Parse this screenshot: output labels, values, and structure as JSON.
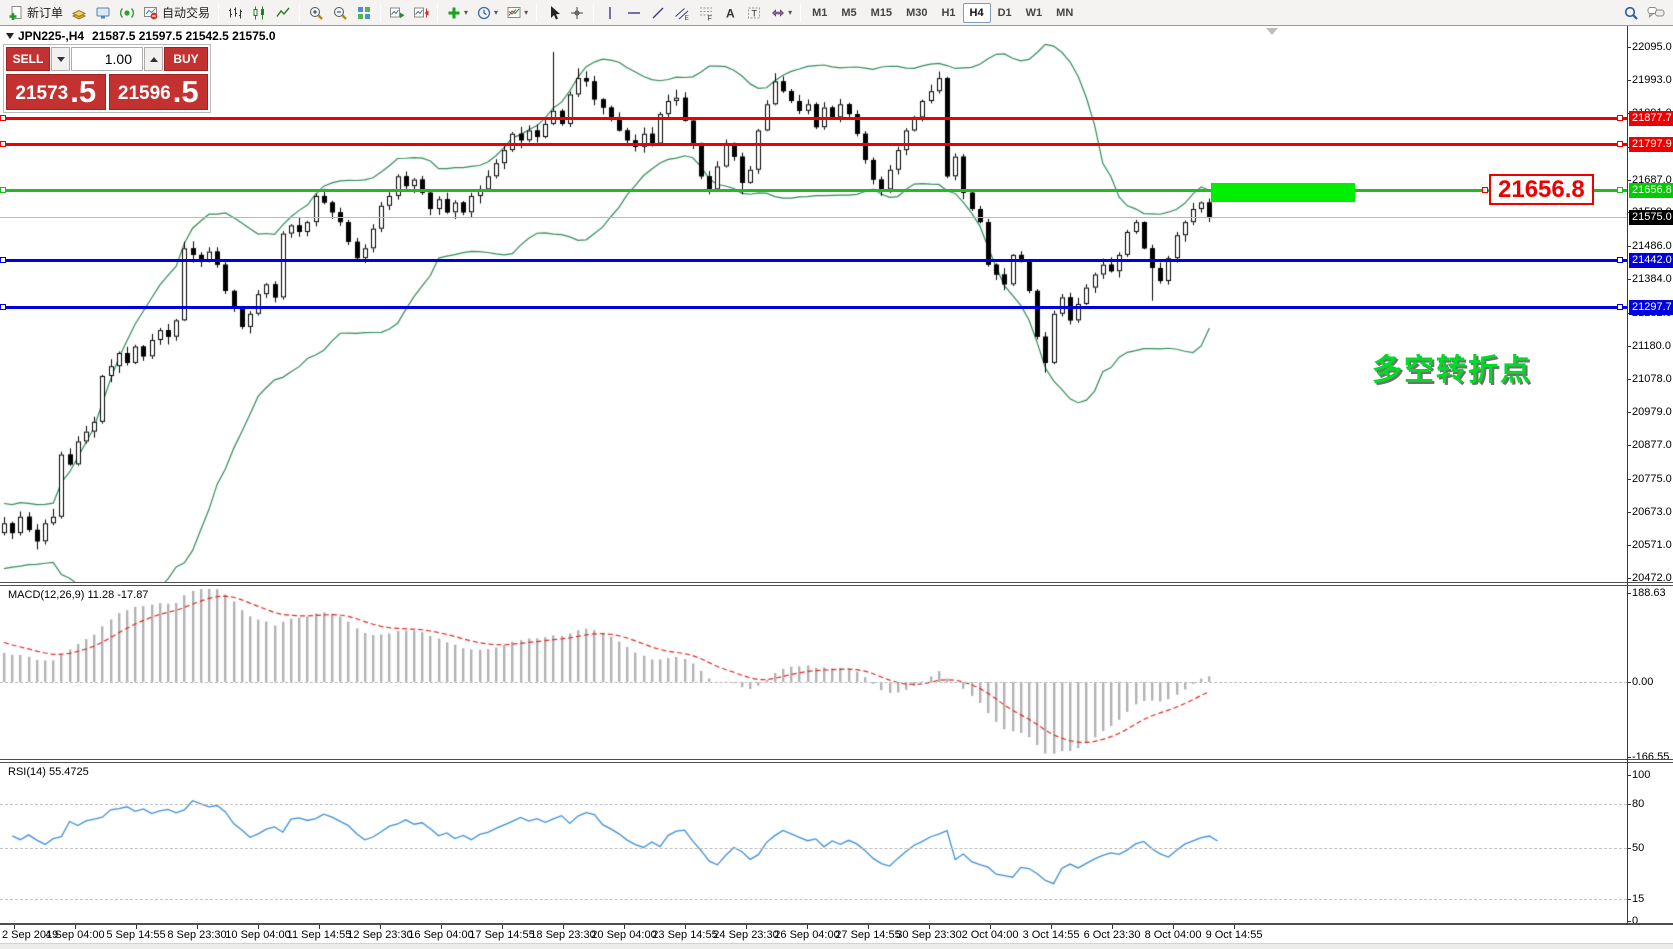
{
  "toolbar": {
    "items": [
      {
        "kind": "button",
        "name": "new-order-button",
        "icon": "doc-plus",
        "label": "新订单"
      },
      {
        "kind": "button",
        "name": "history-center-button",
        "icon": "yellow-book"
      },
      {
        "kind": "button",
        "name": "terminal-button",
        "icon": "terminal"
      },
      {
        "kind": "button",
        "name": "signals-button",
        "icon": "signal"
      },
      {
        "kind": "button",
        "name": "auto-trading-button",
        "icon": "autotrade",
        "label": "自动交易"
      },
      {
        "kind": "sep"
      },
      {
        "kind": "button",
        "name": "bar-chart-button",
        "icon": "bars"
      },
      {
        "kind": "button",
        "name": "candlestick-button",
        "icon": "candles"
      },
      {
        "kind": "button",
        "name": "line-chart-button",
        "icon": "linechart"
      },
      {
        "kind": "sep"
      },
      {
        "kind": "button",
        "name": "zoom-in-button",
        "icon": "zoomin"
      },
      {
        "kind": "button",
        "name": "zoom-out-button",
        "icon": "zoomout"
      },
      {
        "kind": "button",
        "name": "tile-windows-button",
        "icon": "tiles"
      },
      {
        "kind": "sep"
      },
      {
        "kind": "button",
        "name": "auto-scroll-button",
        "icon": "autoscroll"
      },
      {
        "kind": "button",
        "name": "chart-shift-button",
        "icon": "chartshift"
      },
      {
        "kind": "sep"
      },
      {
        "kind": "button",
        "name": "indicators-button",
        "icon": "indplus",
        "caret": true
      },
      {
        "kind": "button",
        "name": "periods-button",
        "icon": "clock",
        "caret": true
      },
      {
        "kind": "button",
        "name": "templates-button",
        "icon": "template",
        "caret": true
      },
      {
        "kind": "sep"
      },
      {
        "kind": "button",
        "name": "cursor-button",
        "icon": "cursor"
      },
      {
        "kind": "button",
        "name": "crosshair-button",
        "icon": "crosshair"
      },
      {
        "kind": "sep"
      },
      {
        "kind": "button",
        "name": "vertical-line-button",
        "icon": "vline"
      },
      {
        "kind": "button",
        "name": "horizontal-line-button",
        "icon": "hline"
      },
      {
        "kind": "button",
        "name": "trendline-button",
        "icon": "trend"
      },
      {
        "kind": "button",
        "name": "equidistant-channel-button",
        "icon": "channel"
      },
      {
        "kind": "button",
        "name": "fibonacci-button",
        "icon": "fibo"
      },
      {
        "kind": "button",
        "name": "text-button",
        "icon": "textA"
      },
      {
        "kind": "button",
        "name": "label-button",
        "icon": "labelT"
      },
      {
        "kind": "button",
        "name": "arrows-button",
        "icon": "shapes",
        "caret": true
      },
      {
        "kind": "sep"
      },
      {
        "kind": "tf",
        "label": "M1"
      },
      {
        "kind": "tf",
        "label": "M5"
      },
      {
        "kind": "tf",
        "label": "M15"
      },
      {
        "kind": "tf",
        "label": "M30"
      },
      {
        "kind": "tf",
        "label": "H1"
      },
      {
        "kind": "tf",
        "label": "H4",
        "active": true
      },
      {
        "kind": "tf",
        "label": "D1"
      },
      {
        "kind": "tf",
        "label": "W1"
      },
      {
        "kind": "tf",
        "label": "MN"
      },
      {
        "kind": "spacer"
      },
      {
        "kind": "button",
        "name": "search-button",
        "icon": "magnifier"
      },
      {
        "kind": "button",
        "name": "chat-button",
        "icon": "chat"
      }
    ]
  },
  "chart": {
    "symbol_period": "JPN225-,H4",
    "ohlc": "21587.5 21597.5 21542.5 21575.0"
  },
  "trade_panel": {
    "sell_label": "SELL",
    "buy_label": "BUY",
    "volume": "1.00",
    "sell_price_int": "21573",
    "sell_price_dec": ".5",
    "buy_price_int": "21596",
    "buy_price_dec": ".5"
  },
  "levels": {
    "lines": [
      {
        "name": "resistance-line-1",
        "price": 21877.7,
        "label": "21877.7",
        "color": "#ee0000",
        "thickness": 3
      },
      {
        "name": "resistance-line-2",
        "price": 21797.9,
        "label": "21797.9",
        "color": "#ee0000",
        "thickness": 3
      },
      {
        "name": "pivot-line",
        "price": 21656.8,
        "label": "21656.8",
        "color": "#22bb22",
        "badge_color": "#00cc00",
        "thickness": 3
      },
      {
        "name": "support-line-1",
        "price": 21442.0,
        "label": "21442.0",
        "color": "#0000e0",
        "thickness": 3
      },
      {
        "name": "support-line-2",
        "price": 21297.7,
        "label": "21297.7",
        "color": "#0000e0",
        "thickness": 3
      }
    ],
    "current_price": {
      "price": 21575.0,
      "label": "21575.0",
      "line_color": "#b8b8b8",
      "badge_color": "#000000"
    },
    "label_box": {
      "text": "21656.8"
    },
    "annotation": {
      "text": "多空转折点"
    }
  },
  "axes": {
    "price_labels": [
      22095.0,
      21993.0,
      21891.0,
      21789.0,
      21687.0,
      21588.0,
      21486.0,
      21384.0,
      21282.0,
      21180.0,
      21078.0,
      20979.0,
      20877.0,
      20775.0,
      20673.0,
      20571.0,
      20472.0
    ],
    "time_labels": [
      "2 Sep 2019",
      "4 Sep 04:00",
      "5 Sep 14:55",
      "8 Sep 23:30",
      "10 Sep 04:00",
      "11 Sep 14:55",
      "12 Sep 23:30",
      "16 Sep 04:00",
      "17 Sep 14:55",
      "18 Sep 23:30",
      "20 Sep 04:00",
      "23 Sep 14:55",
      "24 Sep 23:30",
      "26 Sep 04:00",
      "27 Sep 14:55",
      "30 Sep 23:30",
      "2 Oct 04:00",
      "3 Oct 14:55",
      "6 Oct 23:30",
      "8 Oct 04:00",
      "9 Oct 14:55"
    ]
  },
  "indicators": {
    "macd": {
      "header": "MACD(12,26,9) 11.28 -17.87",
      "axis": [
        {
          "text": "188.63",
          "value": 188.63
        },
        {
          "text": "0.00",
          "value": 0
        },
        {
          "text": "-166.55",
          "value": -166.55
        }
      ]
    },
    "rsi": {
      "header": "RSI(14) 55.4725",
      "axis": [
        {
          "text": "100",
          "value": 100
        },
        {
          "text": "80",
          "value": 80
        },
        {
          "text": "50",
          "value": 50
        },
        {
          "text": "15",
          "value": 15
        },
        {
          "text": "0",
          "value": 0
        }
      ],
      "dashed_levels": [
        80,
        50,
        15
      ]
    }
  },
  "chart_data": {
    "type": "candlestick",
    "symbol": "JPN225-",
    "period": "H4",
    "indicators": [
      "Bollinger Bands",
      "MACD(12,26,9)",
      "RSI(14)"
    ],
    "warmup_closes": [
      20560,
      20680,
      20520,
      20660,
      20540,
      20640,
      20560,
      20620,
      20580,
      20610
    ],
    "closes": [
      20640,
      20610,
      20660,
      20620,
      20585,
      20640,
      20660,
      20850,
      20820,
      20890,
      20920,
      20950,
      21090,
      21120,
      21160,
      21130,
      21180,
      21150,
      21200,
      21230,
      21210,
      21260,
      21480,
      21460,
      21440,
      21470,
      21430,
      21350,
      21300,
      21240,
      21280,
      21340,
      21370,
      21330,
      21525,
      21550,
      21530,
      21560,
      21640,
      21620,
      21590,
      21560,
      21500,
      21450,
      21480,
      21540,
      21610,
      21640,
      21700,
      21670,
      21690,
      21650,
      21600,
      21630,
      21590,
      21620,
      21590,
      21640,
      21660,
      21700,
      21740,
      21780,
      21830,
      21810,
      21840,
      21820,
      21860,
      21900,
      21860,
      21950,
      22000,
      21990,
      21935,
      21910,
      21880,
      21840,
      21810,
      21790,
      21830,
      21800,
      21890,
      21930,
      21940,
      21870,
      21800,
      21700,
      21660,
      21730,
      21800,
      21760,
      21680,
      21720,
      21840,
      21920,
      21990,
      21960,
      21930,
      21900,
      21920,
      21850,
      21910,
      21880,
      21920,
      21890,
      21830,
      21750,
      21690,
      21660,
      21720,
      21780,
      21840,
      21880,
      21930,
      21960,
      22000,
      21700,
      21760,
      21650,
      21600,
      21560,
      21430,
      21400,
      21370,
      21460,
      21440,
      21350,
      21210,
      21130,
      21280,
      21330,
      21260,
      21310,
      21360,
      21400,
      21430,
      21410,
      21460,
      21530,
      21560,
      21480,
      21420,
      21380,
      21450,
      21520,
      21560,
      21600,
      21620,
      21575
    ],
    "high_overrides": {
      "22": 21500,
      "67": 22080,
      "70": 22030,
      "94": 22015,
      "114": 22020
    },
    "low_overrides": {
      "4": 20560,
      "86": 21645,
      "90": 21645,
      "107": 21640,
      "117": 21630,
      "127": 21100,
      "140": 21320
    },
    "price_axis_top": 22095,
    "price_axis_bottom": 20472,
    "bollinger": {
      "period": 20,
      "deviation": 2
    },
    "colors": {
      "band": "#2e8b57",
      "candle_up_fill": "#ffffff",
      "candle_down_fill": "#000000",
      "candle_outline": "#000000",
      "macd_hist": "#b2b2b2",
      "macd_signal": "#e02828",
      "rsi_line": "#3f8fd6"
    }
  }
}
